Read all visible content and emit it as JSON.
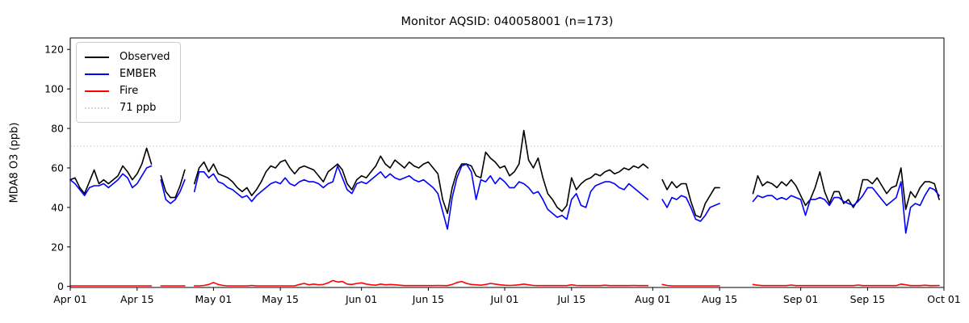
{
  "title": "Monitor AQSID: 040058001 (n=173)",
  "chart_data": {
    "type": "line",
    "title": "Monitor AQSID: 040058001 (n=173)",
    "xlabel": "",
    "ylabel": "MDA8 O3 (ppb)",
    "ylim": [
      0,
      126
    ],
    "grid": false,
    "legend_position": "upper left",
    "y_ticks": [
      0,
      20,
      40,
      60,
      80,
      100,
      120
    ],
    "x_range_days": 183,
    "x_ticks": [
      {
        "day": 0,
        "label": "Apr 01"
      },
      {
        "day": 14,
        "label": "Apr 15"
      },
      {
        "day": 30,
        "label": "May 01"
      },
      {
        "day": 44,
        "label": "May 15"
      },
      {
        "day": 61,
        "label": "Jun 01"
      },
      {
        "day": 75,
        "label": "Jun 15"
      },
      {
        "day": 91,
        "label": "Jul 01"
      },
      {
        "day": 105,
        "label": "Jul 15"
      },
      {
        "day": 122,
        "label": "Aug 01"
      },
      {
        "day": 136,
        "label": "Aug 15"
      },
      {
        "day": 153,
        "label": "Sep 01"
      },
      {
        "day": 167,
        "label": "Sep 15"
      },
      {
        "day": 183,
        "label": "Oct 01"
      }
    ],
    "threshold": {
      "value": 71,
      "label": "71 ppb",
      "color": "#d3d3d3",
      "style": "dotted"
    },
    "legend": [
      {
        "label": "Observed",
        "color": "#000000",
        "style": "solid"
      },
      {
        "label": "EMBER",
        "color": "#0000ff",
        "style": "solid"
      },
      {
        "label": "Fire",
        "color": "#ff0000",
        "style": "solid"
      },
      {
        "label": "71 ppb",
        "color": "#d3d3d3",
        "style": "dotted"
      }
    ],
    "date_start": "Apr 01",
    "date_end": "Sep 30",
    "missing_dates": [
      "Apr 19",
      "Apr 26",
      "Aug 01",
      "Aug 02",
      "Aug 16",
      "Aug 17",
      "Aug 18",
      "Aug 19",
      "Aug 20",
      "Aug 21"
    ],
    "series": [
      {
        "name": "Observed",
        "color": "#000000",
        "values": [
          54,
          55,
          50,
          47,
          53,
          59,
          52,
          54,
          52,
          54,
          56,
          61,
          58,
          54,
          57,
          62,
          70,
          62,
          null,
          56,
          48,
          45,
          45,
          51,
          59,
          null,
          52,
          60,
          63,
          58,
          62,
          57,
          56,
          55,
          53,
          50,
          48,
          50,
          46,
          49,
          53,
          58,
          61,
          60,
          63,
          64,
          60,
          57,
          60,
          61,
          60,
          59,
          56,
          53,
          58,
          60,
          62,
          59,
          52,
          49,
          54,
          56,
          55,
          58,
          61,
          66,
          62,
          60,
          64,
          62,
          60,
          63,
          61,
          60,
          62,
          63,
          60,
          57,
          44,
          37,
          50,
          58,
          62,
          62,
          61,
          56,
          55,
          68,
          65,
          63,
          60,
          61,
          56,
          58,
          62,
          79,
          64,
          60,
          65,
          55,
          47,
          44,
          40,
          38,
          41,
          55,
          49,
          52,
          54,
          55,
          57,
          56,
          58,
          59,
          57,
          58,
          60,
          59,
          61,
          60,
          62,
          60,
          null,
          null,
          54,
          49,
          53,
          50,
          52,
          52,
          43,
          36,
          35,
          42,
          46,
          50,
          50,
          null,
          null,
          null,
          null,
          null,
          null,
          47,
          56,
          51,
          53,
          52,
          50,
          53,
          51,
          54,
          51,
          46,
          41,
          44,
          50,
          58,
          48,
          42,
          48,
          48,
          42,
          44,
          40,
          44,
          54,
          54,
          52,
          55,
          51,
          47,
          50,
          51,
          60,
          39,
          48,
          45,
          50,
          53,
          53,
          52,
          44
        ]
      },
      {
        "name": "EMBER",
        "color": "#0000ff",
        "values": [
          54,
          52,
          49,
          46,
          50,
          51,
          51,
          52,
          50,
          52,
          54,
          57,
          55,
          50,
          52,
          56,
          60,
          61,
          null,
          54,
          44,
          42,
          44,
          48,
          54,
          null,
          48,
          58,
          58,
          55,
          57,
          53,
          52,
          50,
          49,
          47,
          45,
          46,
          43,
          46,
          48,
          50,
          52,
          53,
          52,
          55,
          52,
          51,
          53,
          54,
          53,
          53,
          52,
          50,
          52,
          53,
          61,
          55,
          49,
          47,
          52,
          53,
          52,
          54,
          56,
          58,
          55,
          57,
          55,
          54,
          55,
          56,
          54,
          53,
          54,
          52,
          50,
          47,
          38,
          29,
          45,
          55,
          61,
          62,
          58,
          44,
          54,
          53,
          56,
          52,
          55,
          53,
          50,
          50,
          53,
          52,
          50,
          47,
          48,
          44,
          39,
          37,
          35,
          36,
          34,
          44,
          47,
          41,
          40,
          48,
          51,
          52,
          53,
          53,
          52,
          50,
          49,
          52,
          50,
          48,
          46,
          44,
          null,
          null,
          44,
          40,
          45,
          44,
          46,
          45,
          40,
          34,
          33,
          36,
          40,
          41,
          42,
          null,
          null,
          null,
          null,
          null,
          null,
          43,
          46,
          45,
          46,
          46,
          44,
          45,
          44,
          46,
          45,
          44,
          36,
          44,
          44,
          45,
          44,
          41,
          45,
          45,
          43,
          42,
          41,
          43,
          46,
          50,
          50,
          47,
          44,
          41,
          43,
          45,
          53,
          27,
          40,
          42,
          41,
          46,
          50,
          49,
          46
        ]
      },
      {
        "name": "Fire",
        "color": "#ff0000",
        "values": [
          0.3,
          0.3,
          0.3,
          0.3,
          0.3,
          0.3,
          0.3,
          0.3,
          0.3,
          0.3,
          0.3,
          0.3,
          0.3,
          0.3,
          0.3,
          0.3,
          0.3,
          0.3,
          null,
          0.3,
          0.3,
          0.3,
          0.3,
          0.3,
          0.3,
          null,
          0.3,
          0.3,
          0.5,
          1.0,
          2.0,
          1.0,
          0.5,
          0.3,
          0.3,
          0.3,
          0.3,
          0.3,
          0.5,
          0.3,
          0.3,
          0.3,
          0.3,
          0.3,
          0.3,
          0.3,
          0.3,
          0.3,
          1.0,
          1.5,
          0.8,
          1.2,
          0.8,
          1.0,
          1.8,
          3.0,
          2.2,
          2.5,
          1.2,
          1.0,
          1.5,
          1.8,
          1.2,
          0.8,
          0.6,
          1.2,
          0.8,
          1.0,
          0.8,
          0.6,
          0.4,
          0.4,
          0.4,
          0.4,
          0.4,
          0.4,
          0.4,
          0.5,
          0.4,
          0.4,
          1.0,
          2.0,
          2.5,
          1.5,
          1.0,
          0.8,
          0.6,
          1.0,
          1.5,
          1.2,
          0.8,
          0.6,
          0.5,
          0.6,
          0.8,
          1.2,
          0.8,
          0.5,
          0.4,
          0.4,
          0.4,
          0.4,
          0.4,
          0.4,
          0.4,
          0.8,
          0.5,
          0.4,
          0.4,
          0.4,
          0.4,
          0.4,
          0.6,
          0.4,
          0.4,
          0.4,
          0.4,
          0.4,
          0.5,
          0.4,
          0.4,
          0.4,
          null,
          null,
          1.0,
          0.5,
          0.3,
          0.3,
          0.3,
          0.3,
          0.3,
          0.3,
          0.3,
          0.3,
          0.3,
          0.3,
          0.3,
          null,
          null,
          null,
          null,
          null,
          null,
          1.0,
          0.6,
          0.4,
          0.4,
          0.4,
          0.4,
          0.4,
          0.4,
          0.7,
          0.4,
          0.4,
          0.4,
          0.4,
          0.4,
          0.4,
          0.4,
          0.4,
          0.4,
          0.4,
          0.4,
          0.4,
          0.4,
          0.7,
          0.4,
          0.4,
          0.4,
          0.4,
          0.4,
          0.4,
          0.4,
          0.4,
          1.2,
          0.8,
          0.4,
          0.4,
          0.4,
          0.6,
          0.4,
          0.4,
          0.5
        ]
      }
    ]
  }
}
